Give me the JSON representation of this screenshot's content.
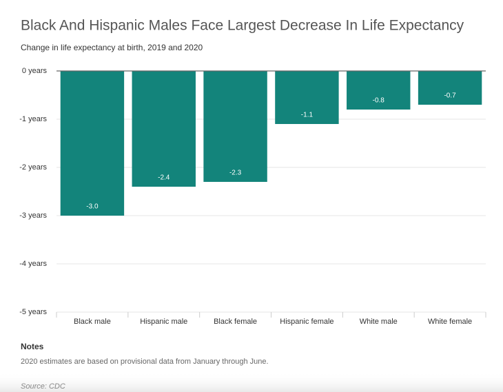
{
  "chart_data": {
    "type": "bar",
    "title": "Black And Hispanic Males Face Largest Decrease In Life Expectancy",
    "subtitle": "Change in life expectancy at birth, 2019 and 2020",
    "categories": [
      "Black male",
      "Hispanic male",
      "Black female",
      "Hispanic female",
      "White male",
      "White female"
    ],
    "values": [
      -3.0,
      -2.4,
      -2.3,
      -1.1,
      -0.8,
      -0.7
    ],
    "value_labels": [
      "-3.0",
      "-2.4",
      "-2.3",
      "-1.1",
      "-0.8",
      "-0.7"
    ],
    "color": "#13847b",
    "ylim": [
      -5,
      0
    ],
    "yticks": [
      {
        "value": 0,
        "label": "0 years"
      },
      {
        "value": -1,
        "label": "-1 years"
      },
      {
        "value": -2,
        "label": "-2 years"
      },
      {
        "value": -3,
        "label": "-3 years"
      },
      {
        "value": -4,
        "label": "-4 years"
      },
      {
        "value": -5,
        "label": "-5 years"
      }
    ],
    "grid": true
  },
  "notes_heading": "Notes",
  "notes": "2020 estimates are based on provisional data from January through June.",
  "source": "Source: CDC"
}
